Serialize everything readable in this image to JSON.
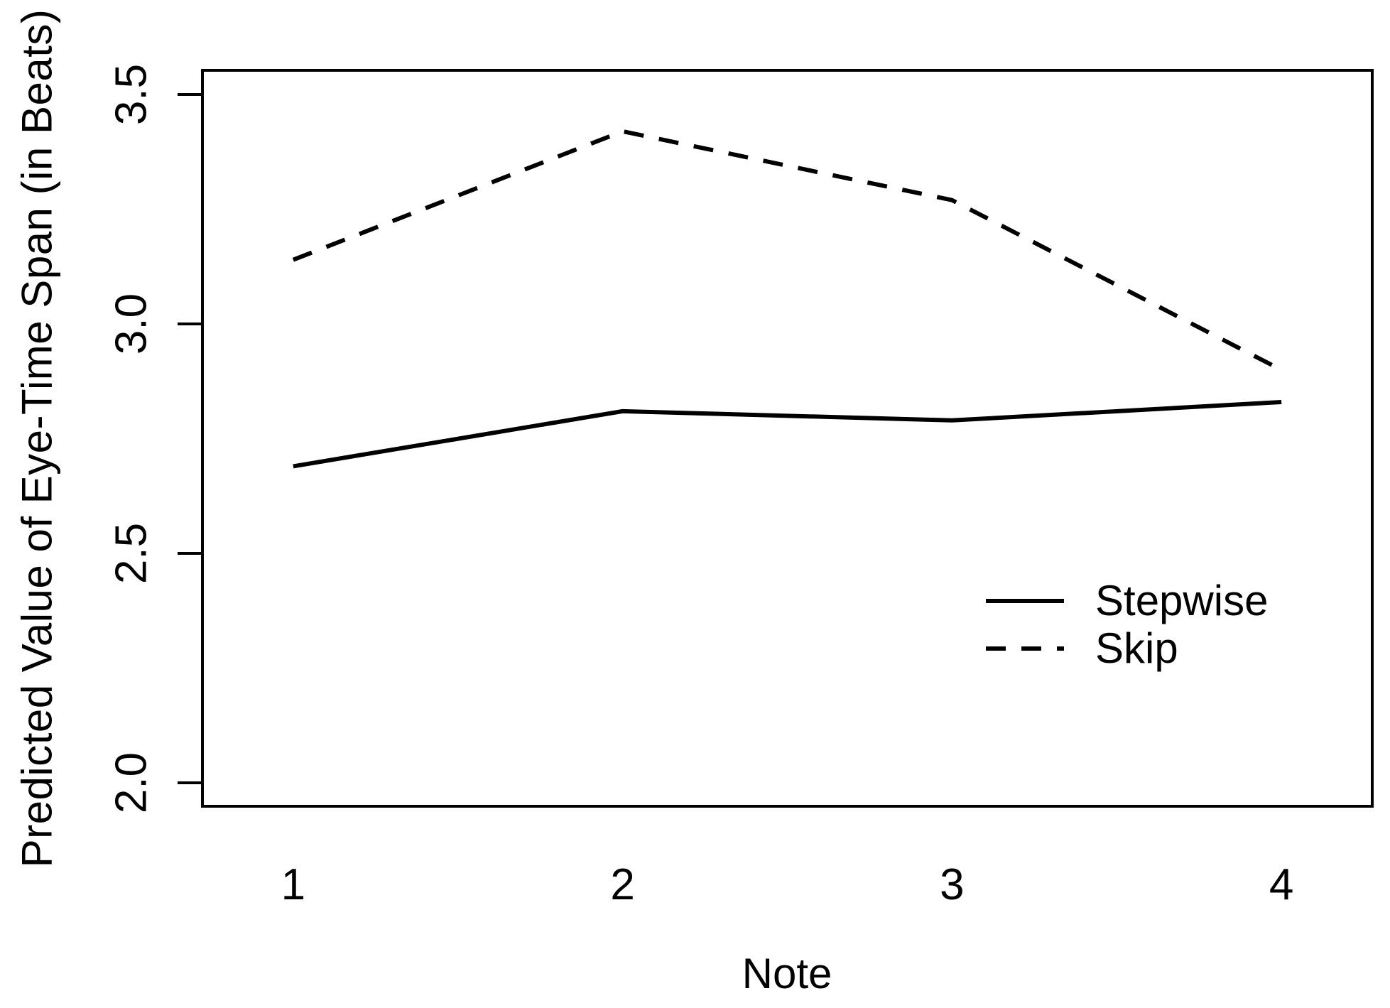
{
  "figure": {
    "background_color": "#ffffff",
    "foreground_color": "#000000"
  },
  "chart_data": {
    "type": "line",
    "title": "",
    "xlabel": "Note",
    "ylabel": "Predicted Value of Eye-Time Span (in Beats)",
    "categories": [
      1,
      2,
      3,
      4
    ],
    "x_tick_labels": [
      "1",
      "2",
      "3",
      "4"
    ],
    "y_ticks": [
      2.0,
      2.5,
      3.0,
      3.5
    ],
    "y_tick_labels": [
      "2.0",
      "2.5",
      "3.0",
      "3.5"
    ],
    "series": [
      {
        "name": "Stepwise",
        "linestyle": "solid",
        "color": "#000000",
        "values": [
          2.69,
          2.81,
          2.79,
          2.83
        ]
      },
      {
        "name": "Skip",
        "linestyle": "dashed",
        "color": "#000000",
        "values": [
          3.14,
          3.42,
          3.27,
          2.9
        ]
      }
    ],
    "xlim": [
      0.72,
      4.28
    ],
    "ylim": [
      1.946,
      3.556
    ],
    "grid": false,
    "legend_position": "inside-right-middle",
    "legend_labels": [
      "Stepwise",
      "Skip"
    ]
  }
}
